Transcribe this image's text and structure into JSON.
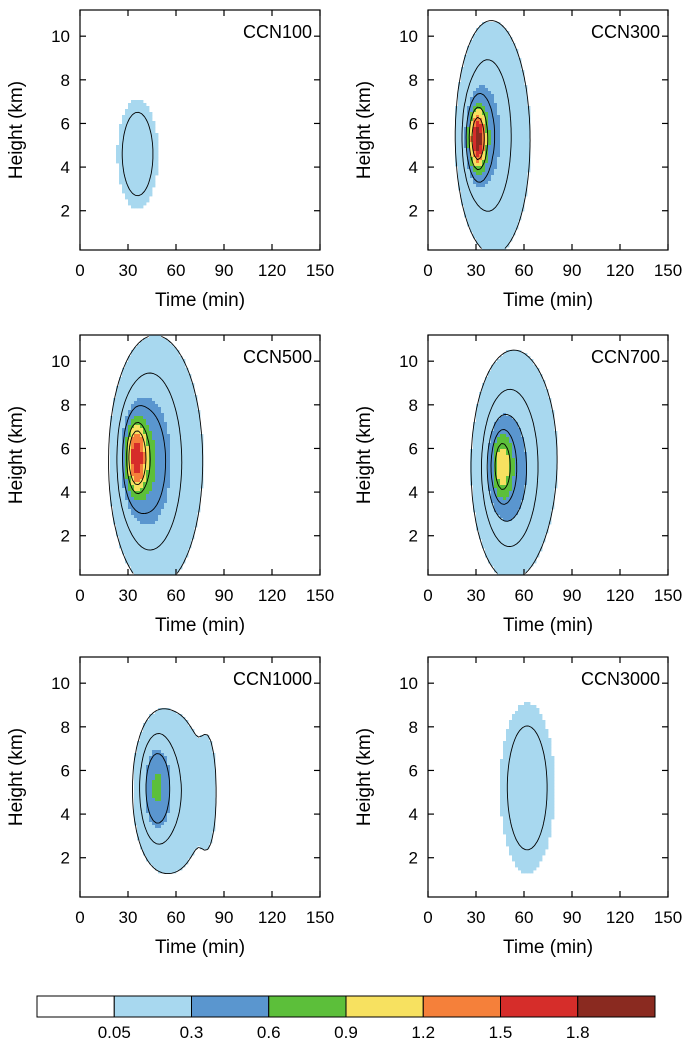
{
  "chart_data": [
    {
      "type": "heatmap",
      "title": "CCN100",
      "xlabel": "Time (min)",
      "ylabel": "Height (km)",
      "xlim": [
        0,
        150
      ],
      "ylim": [
        0.2,
        11.2
      ],
      "xticks": [
        0,
        30,
        60,
        90,
        120,
        150
      ],
      "yticks": [
        2,
        4,
        6,
        8,
        10
      ],
      "blobs": [
        {
          "x": 36,
          "y": 4.6,
          "rx": 10,
          "ry": 2.0,
          "peak": 0.25
        }
      ],
      "contour_levels": [
        0.1
      ]
    },
    {
      "type": "heatmap",
      "title": "CCN300",
      "xlabel": "Time (min)",
      "ylabel": "Height (km)",
      "xlim": [
        0,
        150
      ],
      "ylim": [
        0.2,
        11.2
      ],
      "xticks": [
        0,
        30,
        60,
        90,
        120,
        150
      ],
      "yticks": [
        2,
        4,
        6,
        8,
        10
      ],
      "blobs": [
        {
          "x": 31,
          "y": 5.3,
          "rx": 5,
          "ry": 1.3,
          "peak": 1.7
        },
        {
          "x": 36,
          "y": 5.5,
          "rx": 12,
          "ry": 3.0,
          "peak": 0.35
        },
        {
          "x": 45,
          "y": 5.2,
          "rx": 22,
          "ry": 5.5,
          "peak": 0.1
        }
      ],
      "contour_levels": [
        0.05,
        0.15,
        0.4,
        0.8,
        1.3
      ]
    },
    {
      "type": "heatmap",
      "title": "CCN500",
      "xlabel": "Time (min)",
      "ylabel": "Height (km)",
      "xlim": [
        0,
        150
      ],
      "ylim": [
        0.2,
        11.2
      ],
      "xticks": [
        0,
        30,
        60,
        90,
        120,
        150
      ],
      "yticks": [
        2,
        4,
        6,
        8,
        10
      ],
      "blobs": [
        {
          "x": 35,
          "y": 5.6,
          "rx": 6,
          "ry": 1.5,
          "peak": 1.3
        },
        {
          "x": 42,
          "y": 5.4,
          "rx": 14,
          "ry": 3.0,
          "peak": 0.55
        },
        {
          "x": 52,
          "y": 5.4,
          "rx": 26,
          "ry": 5.5,
          "peak": 0.12
        }
      ],
      "contour_levels": [
        0.05,
        0.15,
        0.4,
        0.8,
        1.1
      ]
    },
    {
      "type": "heatmap",
      "title": "CCN700",
      "xlabel": "Time (min)",
      "ylabel": "Height (km)",
      "xlim": [
        0,
        150
      ],
      "ylim": [
        0.2,
        11.2
      ],
      "xticks": [
        0,
        30,
        60,
        90,
        120,
        150
      ],
      "yticks": [
        2,
        4,
        6,
        8,
        10
      ],
      "blobs": [
        {
          "x": 46,
          "y": 5.2,
          "rx": 6,
          "ry": 1.4,
          "peak": 0.7
        },
        {
          "x": 50,
          "y": 5.0,
          "rx": 14,
          "ry": 3.0,
          "peak": 0.4
        },
        {
          "x": 58,
          "y": 5.6,
          "rx": 26,
          "ry": 5.0,
          "peak": 0.1
        }
      ],
      "contour_levels": [
        0.05,
        0.15,
        0.3,
        0.5,
        0.8
      ]
    },
    {
      "type": "heatmap",
      "title": "CCN1000",
      "xlabel": "Time (min)",
      "ylabel": "Height (km)",
      "xlim": [
        0,
        150
      ],
      "ylim": [
        0.2,
        11.2
      ],
      "xticks": [
        0,
        30,
        60,
        90,
        120,
        150
      ],
      "yticks": [
        2,
        4,
        6,
        8,
        10
      ],
      "blobs": [
        {
          "x": 48,
          "y": 5.2,
          "rx": 8,
          "ry": 1.8,
          "peak": 0.55
        },
        {
          "x": 57,
          "y": 5.0,
          "rx": 20,
          "ry": 3.5,
          "peak": 0.15
        },
        {
          "x": 80,
          "y": 5.0,
          "rx": 5,
          "ry": 2.5,
          "peak": 0.08
        }
      ],
      "contour_levels": [
        0.05,
        0.15,
        0.35
      ]
    },
    {
      "type": "heatmap",
      "title": "CCN3000",
      "xlabel": "Time (min)",
      "ylabel": "Height (km)",
      "xlim": [
        0,
        150
      ],
      "ylim": [
        0.2,
        11.2
      ],
      "xticks": [
        0,
        30,
        60,
        90,
        120,
        150
      ],
      "yticks": [
        2,
        4,
        6,
        8,
        10
      ],
      "blobs": [
        {
          "x": 62,
          "y": 5.2,
          "rx": 14,
          "ry": 3.2,
          "peak": 0.22
        }
      ],
      "contour_levels": [
        0.1
      ]
    }
  ],
  "colorbar": {
    "levels": [
      "0.05",
      "0.3",
      "0.6",
      "0.9",
      "1.2",
      "1.5",
      "1.8"
    ],
    "thresholds": [
      0.05,
      0.3,
      0.6,
      0.9,
      1.2,
      1.5,
      1.8
    ],
    "colors": [
      "#ffffff",
      "#a8d8ef",
      "#5a96cf",
      "#5cbf3a",
      "#f7e160",
      "#f5803a",
      "#d62d2a",
      "#8a2a20"
    ]
  }
}
